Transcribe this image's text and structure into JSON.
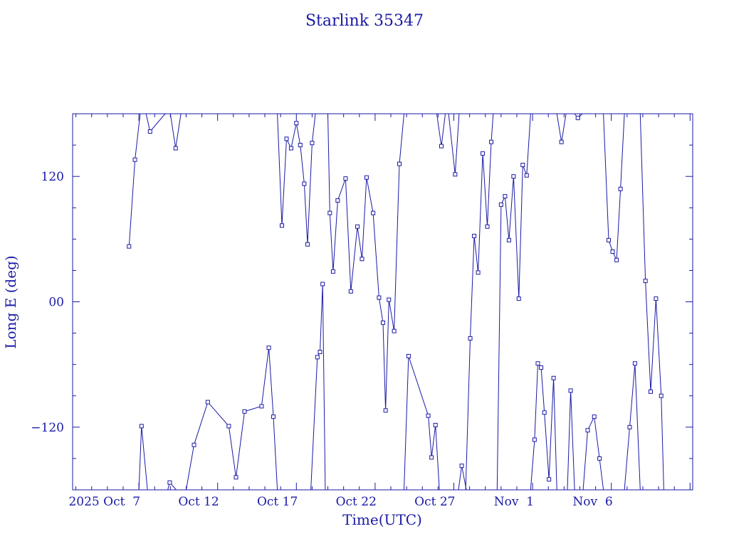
{
  "chart_data": {
    "type": "line",
    "title": "Starlink 35347",
    "xlabel": "Time(UTC)",
    "ylabel": "Long E (deg)",
    "x_unit": "date (2025 UTC)",
    "xlim": [
      "2025-10-02T19:00",
      "2025-11-11T04:00"
    ],
    "ylim": [
      -180,
      180
    ],
    "x_tick_labels": [
      "2025 Oct  7",
      "Oct 12",
      "Oct 17",
      "Oct 22",
      "Oct 27",
      "Nov  1",
      "Nov  6"
    ],
    "y_tick_labels": [
      "120",
      "00",
      "−120"
    ],
    "y_ticks": [
      120,
      0,
      -120
    ],
    "grid": false,
    "marker": "open-square",
    "color": "#1a1aa6",
    "series": [
      {
        "segments": [
          [
            [
              "2025-10-06T09:00",
              53
            ],
            [
              "2025-10-06T18:00",
              136
            ],
            [
              "2025-10-07T02:00",
              180
            ]
          ],
          [
            [
              "2025-10-07T11:00",
              180
            ],
            [
              "2025-10-07T17:00",
              163
            ],
            [
              "2025-10-08T16:00",
              180
            ]
          ],
          [
            [
              "2025-10-09T00:00",
              180
            ],
            [
              "2025-10-09T08:00",
              147
            ],
            [
              "2025-10-09T16:00",
              180
            ]
          ],
          [
            [
              "2025-10-07T00:00",
              -180
            ],
            [
              "2025-10-07T04:00",
              -119
            ],
            [
              "2025-10-07T13:00",
              -180
            ]
          ],
          [
            [
              "2025-10-08T20:00",
              -180
            ],
            [
              "2025-10-08T23:00",
              -173
            ],
            [
              "2025-10-09T09:00",
              -180
            ]
          ],
          [
            [
              "2025-10-10T00:00",
              -180
            ],
            [
              "2025-10-10T12:00",
              -137
            ],
            [
              "2025-10-11T09:00",
              -96
            ],
            [
              "2025-10-12T17:00",
              -119
            ],
            [
              "2025-10-13T04:00",
              -168
            ],
            [
              "2025-10-13T17:00",
              -105
            ],
            [
              "2025-10-14T19:00",
              -100
            ],
            [
              "2025-10-15T06:00",
              -44
            ],
            [
              "2025-10-15T13:00",
              -110
            ],
            [
              "2025-10-15T19:00",
              -180
            ]
          ],
          [
            [
              "2025-10-15T19:00",
              180
            ],
            [
              "2025-10-16T02:00",
              73
            ],
            [
              "2025-10-16T09:00",
              156
            ],
            [
              "2025-10-16T16:00",
              147
            ],
            [
              "2025-10-17T00:00",
              171
            ],
            [
              "2025-10-17T06:00",
              150
            ],
            [
              "2025-10-17T12:00",
              113
            ],
            [
              "2025-10-17T17:00",
              55
            ],
            [
              "2025-10-18T00:00",
              152
            ],
            [
              "2025-10-18T05:00",
              180
            ]
          ],
          [
            [
              "2025-10-17T22:00",
              -180
            ],
            [
              "2025-10-18T08:00",
              -53
            ],
            [
              "2025-10-18T12:00",
              -48
            ],
            [
              "2025-10-18T16:00",
              17
            ],
            [
              "2025-10-18T20:00",
              -180
            ]
          ],
          [
            [
              "2025-10-19T00:00",
              180
            ],
            [
              "2025-10-19T03:00",
              85
            ],
            [
              "2025-10-19T08:00",
              29
            ],
            [
              "2025-10-19T15:00",
              97
            ],
            [
              "2025-10-20T03:00",
              118
            ],
            [
              "2025-10-20T11:00",
              10
            ],
            [
              "2025-10-20T21:00",
              72
            ],
            [
              "2025-10-21T04:00",
              41
            ],
            [
              "2025-10-21T11:00",
              119
            ],
            [
              "2025-10-21T21:00",
              85
            ],
            [
              "2025-10-22T06:00",
              4
            ],
            [
              "2025-10-22T12:00",
              -20
            ],
            [
              "2025-10-22T16:00",
              -104
            ],
            [
              "2025-10-22T21:00",
              2
            ],
            [
              "2025-10-23T05:00",
              -28
            ],
            [
              "2025-10-23T13:00",
              132
            ],
            [
              "2025-10-23T20:00",
              180
            ]
          ],
          [
            [
              "2025-10-23T20:00",
              -180
            ],
            [
              "2025-10-24T03:00",
              -52
            ],
            [
              "2025-10-25T09:00",
              -109
            ],
            [
              "2025-10-25T14:00",
              -149
            ],
            [
              "2025-10-25T20:00",
              -118
            ],
            [
              "2025-10-26T02:00",
              -180
            ]
          ],
          [
            [
              "2025-10-25T22:00",
              180
            ],
            [
              "2025-10-26T05:00",
              149
            ],
            [
              "2025-10-26T11:00",
              180
            ]
          ],
          [
            [
              "2025-10-26T16:00",
              180
            ],
            [
              "2025-10-27T02:00",
              122
            ],
            [
              "2025-10-27T08:00",
              180
            ]
          ],
          [
            [
              "2025-10-27T07:00",
              -180
            ],
            [
              "2025-10-27T12:00",
              -157
            ],
            [
              "2025-10-27T19:00",
              -180
            ]
          ],
          [
            [
              "2025-10-27T18:00",
              -180
            ],
            [
              "2025-10-28T01:00",
              -35
            ],
            [
              "2025-10-28T07:00",
              63
            ],
            [
              "2025-10-28T13:00",
              28
            ],
            [
              "2025-10-28T20:00",
              142
            ],
            [
              "2025-10-29T03:00",
              72
            ],
            [
              "2025-10-29T09:00",
              153
            ],
            [
              "2025-10-29T12:00",
              180
            ]
          ],
          [
            [
              "2025-10-29T18:00",
              -180
            ],
            [
              "2025-10-30T00:00",
              93
            ],
            [
              "2025-10-30T06:00",
              101
            ],
            [
              "2025-10-30T12:00",
              59
            ],
            [
              "2025-10-30T19:00",
              120
            ],
            [
              "2025-10-31T03:00",
              3
            ],
            [
              "2025-10-31T09:00",
              131
            ],
            [
              "2025-10-31T15:00",
              121
            ],
            [
              "2025-10-31T21:00",
              180
            ]
          ],
          [
            [
              "2025-10-31T21:00",
              -180
            ],
            [
              "2025-11-01T03:00",
              -132
            ],
            [
              "2025-11-01T08:00",
              -59
            ],
            [
              "2025-11-01T13:00",
              -63
            ],
            [
              "2025-11-01T18:00",
              -106
            ],
            [
              "2025-11-02T01:00",
              -170
            ],
            [
              "2025-11-02T08:00",
              -73
            ],
            [
              "2025-11-02T13:00",
              -180
            ]
          ],
          [
            [
              "2025-11-02T13:00",
              180
            ],
            [
              "2025-11-02T20:00",
              153
            ],
            [
              "2025-11-03T03:00",
              180
            ]
          ],
          [
            [
              "2025-11-03T05:00",
              -180
            ],
            [
              "2025-11-03T10:00",
              -85
            ],
            [
              "2025-11-03T16:00",
              -180
            ]
          ],
          [
            [
              "2025-11-03T16:00",
              180
            ],
            [
              "2025-11-03T21:00",
              176
            ],
            [
              "2025-11-04T04:00",
              180
            ]
          ],
          [
            [
              "2025-11-04T05:00",
              -180
            ],
            [
              "2025-11-04T12:00",
              -123
            ],
            [
              "2025-11-04T22:00",
              -110
            ],
            [
              "2025-11-05T06:00",
              -150
            ],
            [
              "2025-11-05T12:00",
              -180
            ]
          ],
          [
            [
              "2025-11-05T12:00",
              180
            ],
            [
              "2025-11-05T20:00",
              59
            ],
            [
              "2025-11-06T02:00",
              48
            ],
            [
              "2025-11-06T08:00",
              40
            ],
            [
              "2025-11-06T14:00",
              108
            ],
            [
              "2025-11-06T20:00",
              180
            ]
          ],
          [
            [
              "2025-11-06T20:00",
              -180
            ],
            [
              "2025-11-07T04:00",
              -120
            ],
            [
              "2025-11-07T12:00",
              -59
            ],
            [
              "2025-11-07T20:00",
              -180
            ]
          ],
          [
            [
              "2025-11-07T20:00",
              180
            ],
            [
              "2025-11-08T04:00",
              20
            ],
            [
              "2025-11-08T12:00",
              -86
            ],
            [
              "2025-11-08T20:00",
              3
            ],
            [
              "2025-11-09T04:00",
              -90
            ],
            [
              "2025-11-09T08:00",
              -180
            ]
          ]
        ]
      }
    ]
  }
}
